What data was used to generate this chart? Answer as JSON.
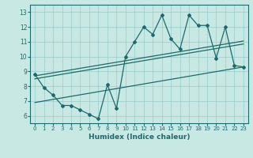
{
  "xlabel": "Humidex (Indice chaleur)",
  "bg_color": "#c8e8e4",
  "line_color": "#1a6b6b",
  "grid_color": "#99cccc",
  "xlim": [
    -0.5,
    23.5
  ],
  "ylim": [
    5.5,
    13.5
  ],
  "xticks": [
    0,
    1,
    2,
    3,
    4,
    5,
    6,
    7,
    8,
    9,
    10,
    11,
    12,
    13,
    14,
    15,
    16,
    17,
    18,
    19,
    20,
    21,
    22,
    23
  ],
  "yticks": [
    6,
    7,
    8,
    9,
    10,
    11,
    12,
    13
  ],
  "main_x": [
    0,
    1,
    2,
    3,
    4,
    5,
    6,
    7,
    8,
    9,
    10,
    11,
    12,
    13,
    14,
    15,
    16,
    17,
    18,
    19,
    20,
    21,
    22,
    23
  ],
  "main_y": [
    8.8,
    7.9,
    7.4,
    6.7,
    6.7,
    6.4,
    6.1,
    5.8,
    8.1,
    6.5,
    10.0,
    11.0,
    12.0,
    11.5,
    12.8,
    11.2,
    10.5,
    12.8,
    12.1,
    12.1,
    9.9,
    12.0,
    9.4,
    9.3
  ],
  "trend1_x": [
    0,
    23
  ],
  "trend1_y": [
    8.7,
    11.05
  ],
  "trend2_x": [
    0,
    23
  ],
  "trend2_y": [
    8.5,
    10.85
  ],
  "trend3_x": [
    0,
    23
  ],
  "trend3_y": [
    6.9,
    9.3
  ]
}
